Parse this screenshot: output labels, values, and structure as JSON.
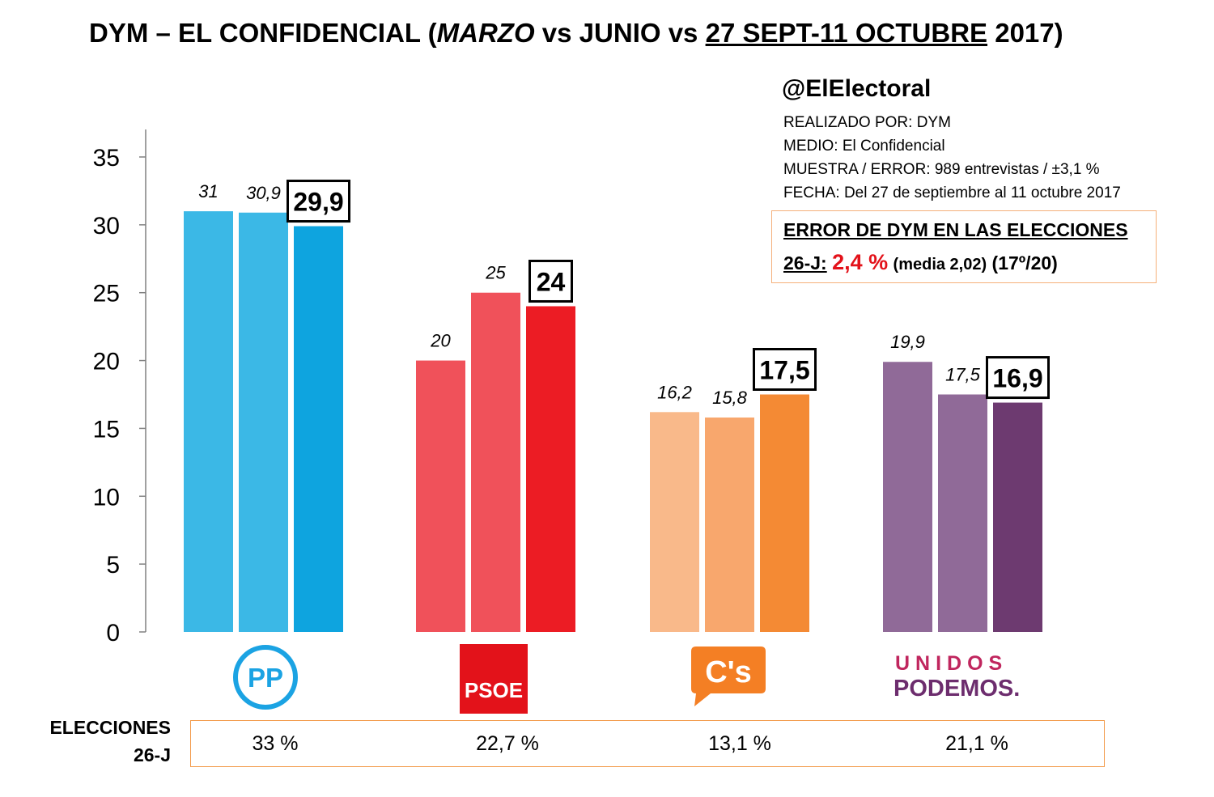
{
  "title": {
    "part1": "DYM – EL CONFIDENCIAL (",
    "part2": "MARZO",
    "part3": " vs JUNIO vs ",
    "part4": "27 SEPT-11 OCTUBRE",
    "part5": " 2017)"
  },
  "handle": "@ElElectoral",
  "meta": [
    "REALIZADO POR: DYM",
    "MEDIO: El Confidencial",
    "MUESTRA / ERROR: 989 entrevistas / ±3,1 %",
    "FECHA: Del 27 de septiembre al 11 octubre 2017"
  ],
  "error_box": {
    "line1": "ERROR DE DYM EN LAS ELECCIONES",
    "label": "26-J:",
    "value": "2,4 %",
    "media": "(media 2,02)",
    "rank": "(17º/20)"
  },
  "elections": {
    "label_line1": "ELECCIONES",
    "label_line2": "26-J",
    "results": [
      "33 %",
      "22,7 %",
      "13,1 %",
      "21,1 %"
    ]
  },
  "logos": {
    "pp": "PP",
    "psoe": "PSOE",
    "cs": "C's",
    "up_line1": "UNIDOS",
    "up_line2": "PODEMOS."
  },
  "chart_data": {
    "type": "bar",
    "categories": [
      "PP",
      "PSOE",
      "C's",
      "Unidos Podemos"
    ],
    "series": [
      {
        "values": [
          31,
          20,
          16.2,
          19.9
        ]
      },
      {
        "values": [
          30.9,
          25,
          15.8,
          17.5
        ]
      },
      {
        "values": [
          29.9,
          24,
          17.5,
          16.9
        ]
      }
    ],
    "data_labels": [
      [
        "31",
        "30,9",
        "29,9"
      ],
      [
        "20",
        "25",
        "24"
      ],
      [
        "16,2",
        "15,8",
        "17,5"
      ],
      [
        "19,9",
        "17,5",
        "16,9"
      ]
    ],
    "bar_colors": [
      [
        "#3bb8e6",
        "#3bb8e6",
        "#0ea4df"
      ],
      [
        "#f0515a",
        "#f0515a",
        "#ec1c24"
      ],
      [
        "#f9b98a",
        "#f8a76d",
        "#f48a34"
      ],
      [
        "#906a98",
        "#906a98",
        "#6d3a70"
      ]
    ],
    "yticks": [
      "0",
      "5",
      "10",
      "15",
      "20",
      "25",
      "30",
      "35"
    ],
    "ylim": [
      0,
      35
    ],
    "grid": false,
    "legend": "none"
  }
}
